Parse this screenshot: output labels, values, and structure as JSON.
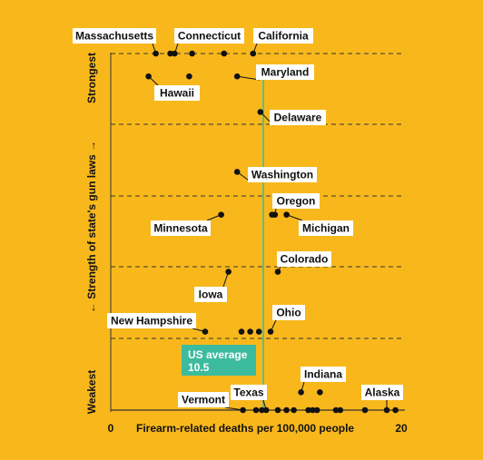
{
  "colors": {
    "background": "#F8B81C",
    "dot": "#111111",
    "label_box": "#FFFFFF",
    "us_average_line": "#3DBB9F",
    "us_average_box": "#3DBB9F",
    "us_average_text": "#FFFFFF",
    "grid": "#333333"
  },
  "chart_data": {
    "type": "scatter",
    "xlabel": "Firearm-related deaths per 100,000 people",
    "ylabel": "←  Strength of state's gun laws  →",
    "xlim": [
      0,
      20
    ],
    "x_ticks": [
      "0",
      "20"
    ],
    "tier_labels": {
      "top": "Strongest",
      "bottom": "Weakest"
    },
    "y_scale": "strength tier 1 (weakest) to 5 (strongest)",
    "grid": "dashed horizontal lines at each tier",
    "us_average": {
      "label": "US average",
      "value_label": "10.5",
      "x": 10.5
    },
    "points": [
      {
        "x": 3.1,
        "y": 5.0,
        "label": "Massachusetts"
      },
      {
        "x": 4.1,
        "y": 5.0
      },
      {
        "x": 4.4,
        "y": 5.0,
        "label": "Connecticut"
      },
      {
        "x": 5.6,
        "y": 5.0
      },
      {
        "x": 7.8,
        "y": 5.0
      },
      {
        "x": 9.8,
        "y": 5.0,
        "label": "California"
      },
      {
        "x": 2.6,
        "y": 4.68,
        "label": "Hawaii"
      },
      {
        "x": 5.4,
        "y": 4.68
      },
      {
        "x": 8.7,
        "y": 4.68,
        "label": "Maryland"
      },
      {
        "x": 10.3,
        "y": 4.18,
        "label": "Delaware"
      },
      {
        "x": 8.7,
        "y": 3.34,
        "label": "Washington"
      },
      {
        "x": 7.6,
        "y": 2.74,
        "label": "Minnesota"
      },
      {
        "x": 11.1,
        "y": 2.74
      },
      {
        "x": 11.3,
        "y": 2.74,
        "label": "Oregon"
      },
      {
        "x": 12.1,
        "y": 2.74,
        "label": "Michigan"
      },
      {
        "x": 11.5,
        "y": 1.94,
        "label": "Colorado"
      },
      {
        "x": 8.1,
        "y": 1.94,
        "label": "Iowa"
      },
      {
        "x": 6.5,
        "y": 1.1,
        "label": "New Hampshire"
      },
      {
        "x": 9.0,
        "y": 1.1
      },
      {
        "x": 9.6,
        "y": 1.1
      },
      {
        "x": 10.2,
        "y": 1.1
      },
      {
        "x": 11.0,
        "y": 1.1,
        "label": "Ohio"
      },
      {
        "x": 9.1,
        "y": 0.0,
        "label": "Vermont"
      },
      {
        "x": 10.0,
        "y": 0.0
      },
      {
        "x": 10.4,
        "y": 0.0
      },
      {
        "x": 10.7,
        "y": 0.0,
        "label": "Texas"
      },
      {
        "x": 11.5,
        "y": 0.0
      },
      {
        "x": 12.1,
        "y": 0.0
      },
      {
        "x": 12.6,
        "y": 0.0
      },
      {
        "x": 13.6,
        "y": 0.0
      },
      {
        "x": 13.9,
        "y": 0.0
      },
      {
        "x": 14.2,
        "y": 0.0
      },
      {
        "x": 15.5,
        "y": 0.0
      },
      {
        "x": 15.8,
        "y": 0.0
      },
      {
        "x": 17.5,
        "y": 0.0
      },
      {
        "x": 19.0,
        "y": 0.0,
        "label": "Alaska"
      },
      {
        "x": 19.6,
        "y": 0.0
      },
      {
        "x": 13.1,
        "y": 0.25,
        "label": "Indiana"
      },
      {
        "x": 14.4,
        "y": 0.25
      }
    ]
  }
}
